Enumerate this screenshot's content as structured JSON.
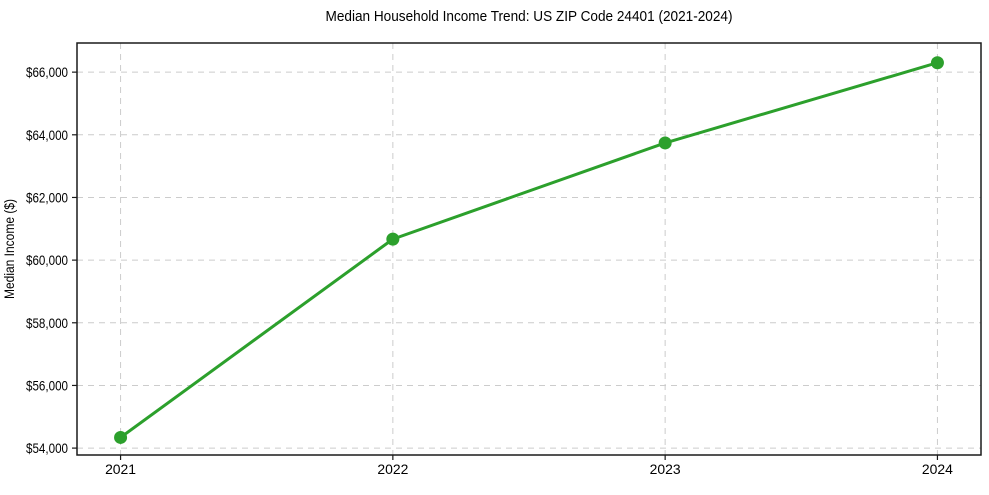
{
  "figure": {
    "background": "#ffffff"
  },
  "chart_data": {
    "type": "line",
    "title": "Median Household Income Trend: US ZIP Code 24401 (2021-2024)",
    "xlabel": "",
    "ylabel": "Median Income ($)",
    "x": [
      2021,
      2022,
      2023,
      2024
    ],
    "x_tick_labels": [
      "2021",
      "2022",
      "2023",
      "2024"
    ],
    "series": [
      {
        "name": "Median Income ($)",
        "values": [
          54340,
          60670,
          63740,
          66300
        ],
        "color": "#2ca02c",
        "marker": "circle",
        "line_width": 3
      }
    ],
    "y_ticks": [
      {
        "value": 54000,
        "label": "$54,000"
      },
      {
        "value": 56000,
        "label": "$56,000"
      },
      {
        "value": 58000,
        "label": "$58,000"
      },
      {
        "value": 60000,
        "label": "$60,000"
      },
      {
        "value": 62000,
        "label": "$62,000"
      },
      {
        "value": 64000,
        "label": "$64,000"
      },
      {
        "value": 66000,
        "label": "$66,000"
      }
    ],
    "xlim": [
      2020.84,
      2024.16
    ],
    "ylim": [
      53780,
      66930
    ],
    "grid": true,
    "grid_linestyle": "dashed",
    "legend_position": "none",
    "colors": {
      "line": "#2ca02c",
      "grid": "#cccccc",
      "spine": "#1a1a1a",
      "text": "#000000"
    }
  }
}
